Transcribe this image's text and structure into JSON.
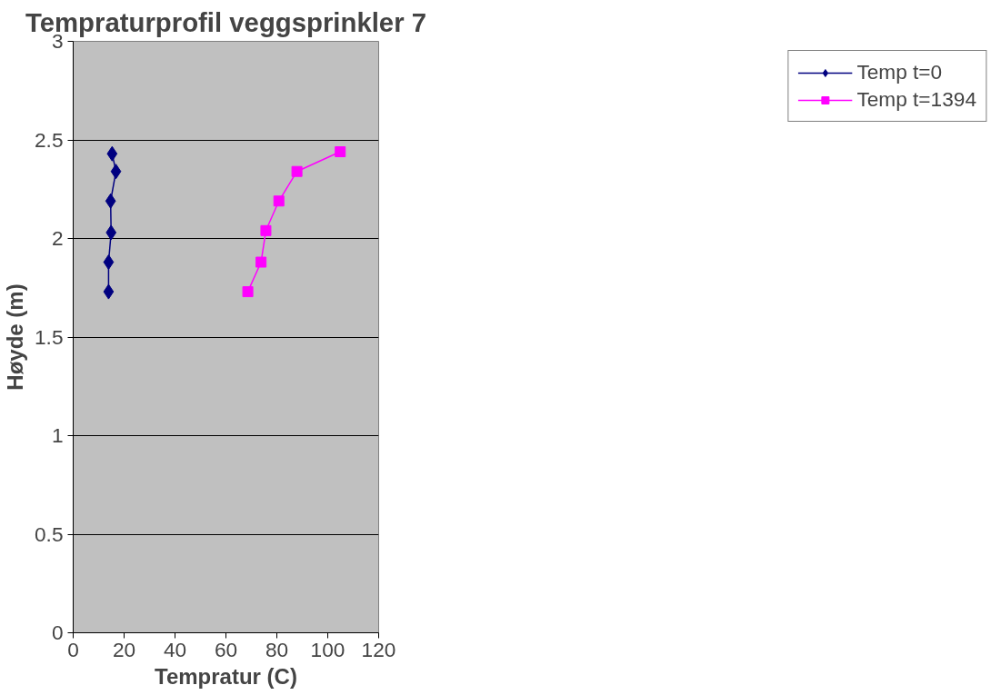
{
  "chart_data": {
    "type": "line",
    "title": "Tempraturprofil veggsprinkler 7",
    "xlabel": "Tempratur (C)",
    "ylabel": "Høyde (m)",
    "xlim": [
      0,
      120
    ],
    "xticks": [
      0,
      20,
      40,
      60,
      80,
      100,
      120
    ],
    "ylim": [
      0,
      3
    ],
    "yticks": [
      0,
      0.5,
      1,
      1.5,
      2,
      2.5,
      3
    ],
    "grid": "y",
    "legend": "right",
    "line_style": "solid",
    "series": [
      {
        "name": "Temp t=0",
        "color": "#000080",
        "marker": "diamond",
        "x": [
          15.3,
          16.8,
          14.7,
          14.9,
          13.9,
          13.9
        ],
        "values": [
          2.43,
          2.34,
          2.19,
          2.03,
          1.88,
          1.73
        ]
      },
      {
        "name": "Temp t=1394",
        "color": "#ff00ff",
        "marker": "square",
        "x": [
          68.6,
          73.8,
          75.7,
          80.8,
          87.9,
          104.9
        ],
        "values": [
          1.73,
          1.88,
          2.04,
          2.19,
          2.34,
          2.44
        ]
      }
    ]
  }
}
